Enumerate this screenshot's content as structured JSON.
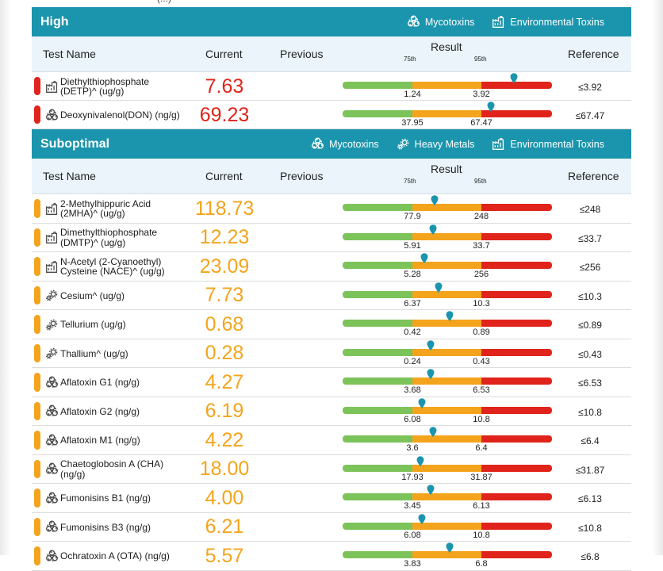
{
  "colors": {
    "header_bg": "#1b95ad",
    "col_header_bg": "#eaf4fa",
    "high": "#e0241b",
    "suboptimal": "#f4a41c",
    "green": "#7cc35a",
    "pin": "#1b95ad"
  },
  "columns": {
    "test_name": "Test Name",
    "current": "Current",
    "previous": "Previous",
    "result": "Result",
    "p75": "75th",
    "p95": "95th",
    "reference": "Reference"
  },
  "top_fragment": "(...)",
  "sections": {
    "high": {
      "title": "High",
      "tags": [
        {
          "icon": "biohazard-icon",
          "label": "Mycotoxins"
        },
        {
          "icon": "factory-icon",
          "label": "Environmental Toxins"
        }
      ],
      "rows": [
        {
          "icon": "factory-icon",
          "name": "Diethylthiophosphate\n(DETP)^ (ug/g)",
          "current": "7.63",
          "previous": "",
          "p75": "1.24",
          "p95": "3.92",
          "reference": "≤3.92",
          "marker_fraction": 0.82
        },
        {
          "icon": "biohazard-icon",
          "name": "Deoxynivalenol(DON) (ng/g)",
          "current": "69.23",
          "previous": "",
          "p75": "37.95",
          "p95": "67.47",
          "reference": "≤67.47",
          "marker_fraction": 0.71
        }
      ]
    },
    "suboptimal": {
      "title": "Suboptimal",
      "tags": [
        {
          "icon": "biohazard-icon",
          "label": "Mycotoxins"
        },
        {
          "icon": "gears-icon",
          "label": "Heavy Metals"
        },
        {
          "icon": "factory-icon",
          "label": "Environmental Toxins"
        }
      ],
      "rows": [
        {
          "icon": "factory-icon",
          "name": "2-Methylhippuric Acid\n(2MHA)^ (ug/g)",
          "current": "118.73",
          "previous": "",
          "p75": "77.9",
          "p95": "248",
          "reference": "≤248",
          "marker_fraction": 0.44
        },
        {
          "icon": "factory-icon",
          "name": "Dimethylthiophosphate\n(DMTP)^ (ug/g)",
          "current": "12.23",
          "previous": "",
          "p75": "5.91",
          "p95": "33.7",
          "reference": "≤33.7",
          "marker_fraction": 0.43
        },
        {
          "icon": "factory-icon",
          "name": "N-Acetyl (2-Cyanoethyl)\nCysteine (NACE)^ (ug/g)",
          "current": "23.09",
          "previous": "",
          "p75": "5.28",
          "p95": "256",
          "reference": "≤256",
          "marker_fraction": 0.39
        },
        {
          "icon": "gears-icon",
          "name": "Cesium^ (ug/g)",
          "current": "7.73",
          "previous": "",
          "p75": "6.37",
          "p95": "10.3",
          "reference": "≤10.3",
          "marker_fraction": 0.46
        },
        {
          "icon": "gears-icon",
          "name": "Tellurium (ug/g)",
          "current": "0.68",
          "previous": "",
          "p75": "0.42",
          "p95": "0.89",
          "reference": "≤0.89",
          "marker_fraction": 0.51
        },
        {
          "icon": "gears-icon",
          "name": "Thallium^ (ug/g)",
          "current": "0.28",
          "previous": "",
          "p75": "0.24",
          "p95": "0.43",
          "reference": "≤0.43",
          "marker_fraction": 0.42
        },
        {
          "icon": "biohazard-icon",
          "name": "Aflatoxin G1 (ng/g)",
          "current": "4.27",
          "previous": "",
          "p75": "3.68",
          "p95": "6.53",
          "reference": "≤6.53",
          "marker_fraction": 0.42
        },
        {
          "icon": "biohazard-icon",
          "name": "Aflatoxin G2 (ng/g)",
          "current": "6.19",
          "previous": "",
          "p75": "6.08",
          "p95": "10.8",
          "reference": "≤10.8",
          "marker_fraction": 0.38
        },
        {
          "icon": "biohazard-icon",
          "name": "Aflatoxin M1 (ng/g)",
          "current": "4.22",
          "previous": "",
          "p75": "3.6",
          "p95": "6.4",
          "reference": "≤6.4",
          "marker_fraction": 0.43
        },
        {
          "icon": "biohazard-icon",
          "name": "Chaetoglobosin A (CHA)\n(ng/g)",
          "current": "18.00",
          "previous": "",
          "p75": "17.93",
          "p95": "31.87",
          "reference": "≤31.87",
          "marker_fraction": 0.37
        },
        {
          "icon": "biohazard-icon",
          "name": "Fumonisins B1 (ng/g)",
          "current": "4.00",
          "previous": "",
          "p75": "3.45",
          "p95": "6.13",
          "reference": "≤6.13",
          "marker_fraction": 0.42
        },
        {
          "icon": "biohazard-icon",
          "name": "Fumonisins B3 (ng/g)",
          "current": "6.21",
          "previous": "",
          "p75": "6.08",
          "p95": "10.8",
          "reference": "≤10.8",
          "marker_fraction": 0.38
        },
        {
          "icon": "biohazard-icon",
          "name": "Ochratoxin A (OTA) (ng/g)",
          "current": "5.57",
          "previous": "",
          "p75": "3.83",
          "p95": "6.8",
          "reference": "≤6.8",
          "marker_fraction": 0.51
        }
      ]
    }
  }
}
